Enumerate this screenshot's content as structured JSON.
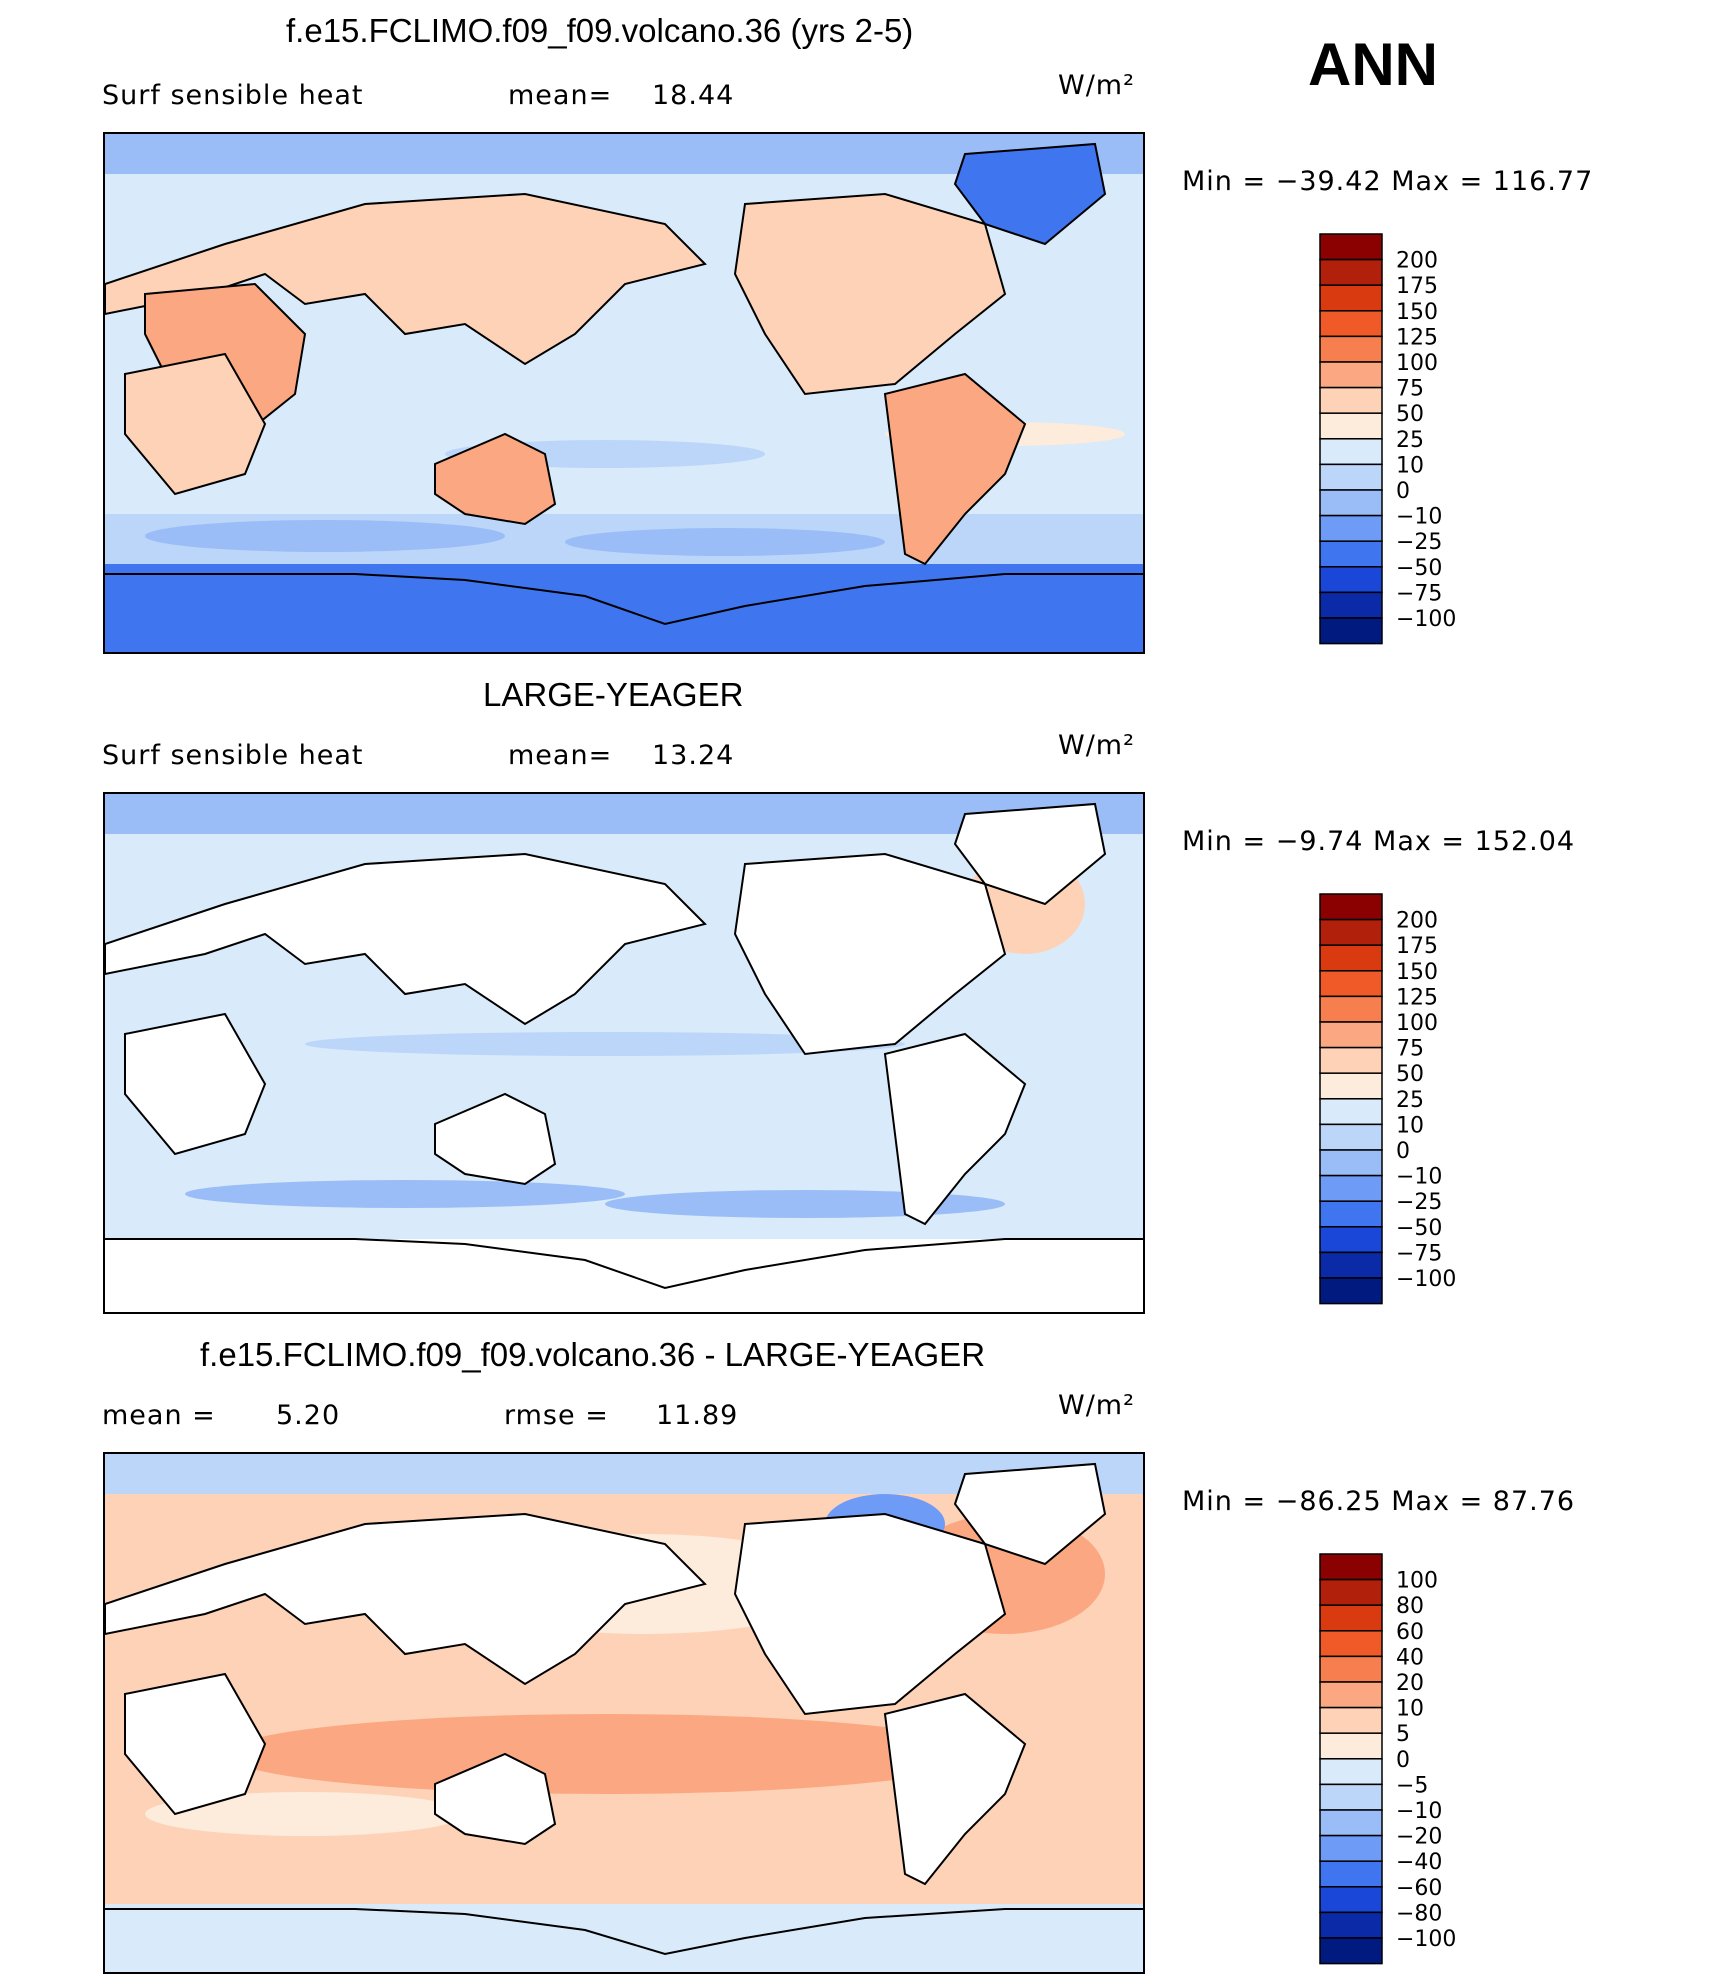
{
  "season": "ANN",
  "panels": [
    {
      "title": "f.e15.FCLIMO.f09_f09.volcano.36 (yrs 2-5)",
      "variable": "Surf  sensible  heat",
      "stat_label": "mean=",
      "stat_value": "18.44",
      "units": "W/m²",
      "minmax_text": "Min  =  −39.42  Max  =  116.77",
      "colorbar": {
        "labels": [
          "200",
          "175",
          "150",
          "125",
          "100",
          "75",
          "50",
          "25",
          "10",
          "0",
          "−10",
          "−25",
          "−50",
          "−75",
          "−100"
        ],
        "colors": [
          "#8b0000",
          "#b0200a",
          "#d93a10",
          "#f05a28",
          "#f77f4f",
          "#fba882",
          "#fdd2b7",
          "#fdebdc",
          "#d9eafa",
          "#bcd6fa",
          "#9abdf7",
          "#6e9bf5",
          "#3f75ef",
          "#1a47d8",
          "#0a2aa8",
          "#001a80"
        ]
      },
      "map_style": "land"
    },
    {
      "title": "LARGE-YEAGER",
      "variable": "Surf  sensible  heat",
      "stat_label": "mean=",
      "stat_value": "13.24",
      "units": "W/m²",
      "minmax_text": "Min  =   −9.74  Max  =  152.04",
      "colorbar": {
        "labels": [
          "200",
          "175",
          "150",
          "125",
          "100",
          "75",
          "50",
          "25",
          "10",
          "0",
          "−10",
          "−25",
          "−50",
          "−75",
          "−100"
        ],
        "colors": [
          "#8b0000",
          "#b0200a",
          "#d93a10",
          "#f05a28",
          "#f77f4f",
          "#fba882",
          "#fdd2b7",
          "#fdebdc",
          "#d9eafa",
          "#bcd6fa",
          "#9abdf7",
          "#6e9bf5",
          "#3f75ef",
          "#1a47d8",
          "#0a2aa8",
          "#001a80"
        ]
      },
      "map_style": "ocean"
    },
    {
      "title": "f.e15.FCLIMO.f09_f09.volcano.36 - LARGE-YEAGER",
      "variable": "mean  =",
      "variable_value": "5.20",
      "stat_label": "rmse  =",
      "stat_value": "11.89",
      "units": "W/m²",
      "minmax_text": "Min  =  −86.25  Max  =   87.76",
      "colorbar": {
        "labels": [
          "100",
          "80",
          "60",
          "40",
          "20",
          "10",
          "5",
          "0",
          "−5",
          "−10",
          "−20",
          "−40",
          "−60",
          "−80",
          "−100"
        ],
        "colors": [
          "#8b0000",
          "#b0200a",
          "#d93a10",
          "#f05a28",
          "#f77f4f",
          "#fba882",
          "#fdd2b7",
          "#fdebdc",
          "#d9eafa",
          "#bcd6fa",
          "#9abdf7",
          "#6e9bf5",
          "#3f75ef",
          "#1a47d8",
          "#0a2aa8",
          "#001a80"
        ]
      },
      "map_style": "diff"
    }
  ]
}
